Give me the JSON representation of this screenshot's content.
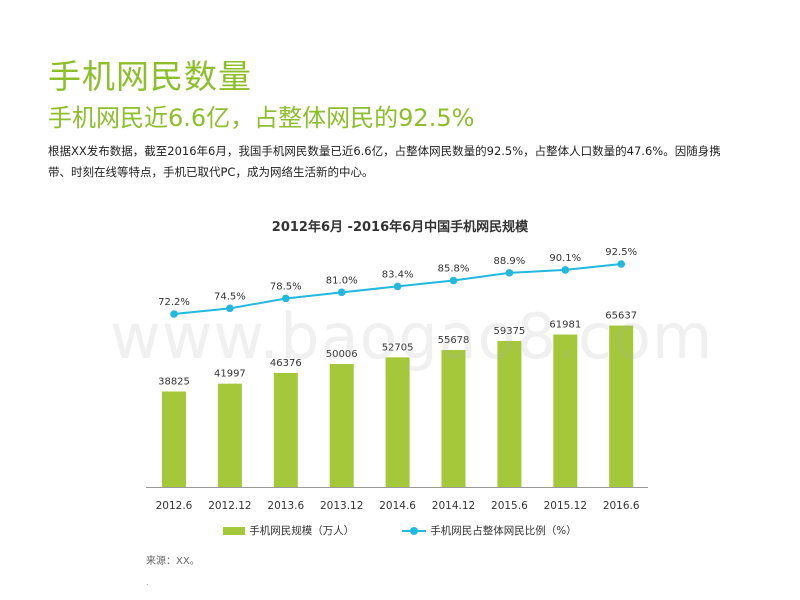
{
  "title": "手机网民数量",
  "subtitle": "手机网民近6.6亿，占整体网民的92.5%",
  "body": "根据XX发布数据，截至2016年6月，我国手机网民数量已近6.6亿，占整体网民数量的92.5%，占整体人口数量的47.6%。因随身携带、时刻在线等特点，手机已取代PC，成为网络生活新的中心。",
  "source": "来源：XX。",
  "watermark": "www.baogao8.com",
  "chart_data": {
    "type": "bar",
    "title": "2012年6月 -2016年6月中国手机网民规模",
    "categories": [
      "2012.6",
      "2012.12",
      "2013.6",
      "2013.12",
      "2014.6",
      "2014.12",
      "2015.6",
      "2015.12",
      "2016.6"
    ],
    "series": [
      {
        "name": "手机网民规模（万人）",
        "type": "bar",
        "values": [
          38825,
          41997,
          46376,
          50006,
          52705,
          55678,
          59375,
          61981,
          65637
        ],
        "labels": [
          "38825",
          "41997",
          "46376",
          "50006",
          "52705",
          "55678",
          "59375",
          "61981",
          "65637"
        ]
      },
      {
        "name": "手机网民占整体网民比例（%）",
        "type": "line",
        "values": [
          72.2,
          74.5,
          78.5,
          81.0,
          83.4,
          85.8,
          88.9,
          90.1,
          92.5
        ],
        "labels": [
          "72.2%",
          "74.5%",
          "78.5%",
          "81.0%",
          "83.4%",
          "85.8%",
          "88.9%",
          "90.1%",
          "92.5%"
        ]
      }
    ],
    "legend": "bottom",
    "grid": false,
    "colors": {
      "bar": "#a5c83a",
      "line": "#22b8e0"
    }
  }
}
